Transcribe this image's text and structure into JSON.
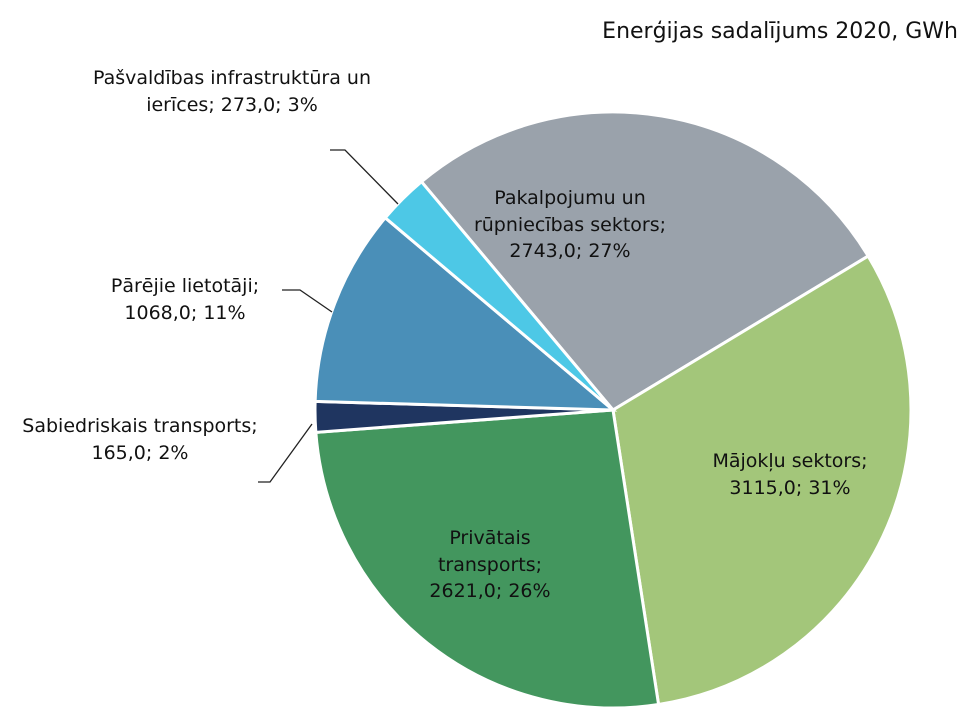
{
  "chart_data": {
    "type": "pie",
    "title": "Enerģijas sadalījums 2020, GWh",
    "categories": [
      "Pakalpojumu un rūpniecības sektors",
      "Mājokļu sektors",
      "Privātais transports",
      "Sabiedriskais transports",
      "Pārējie lietotāji",
      "Pašvaldības infrastruktūra un ierīces"
    ],
    "values": [
      2743,
      3115,
      2621,
      165,
      1068,
      273
    ],
    "value_labels": [
      "2743,0",
      "3115,0",
      "2621,0",
      "165,0",
      "1068,0",
      "273,0"
    ],
    "percent_labels": [
      "27%",
      "31%",
      "26%",
      "2%",
      "11%",
      "3%"
    ],
    "colors": [
      "#9aa2ab",
      "#a3c67a",
      "#43965e",
      "#1f3560",
      "#4a8fb8",
      "#4dc8e6"
    ]
  }
}
